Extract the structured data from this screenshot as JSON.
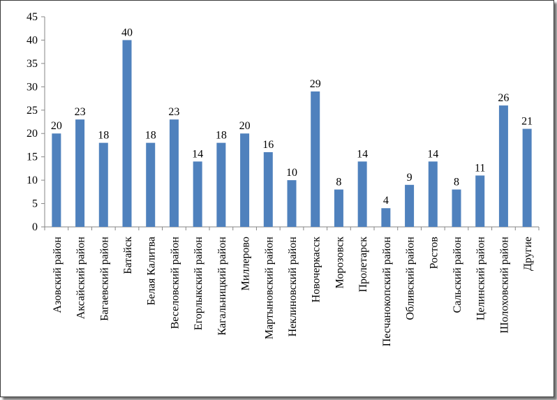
{
  "chart_data": {
    "type": "bar",
    "title": "",
    "xlabel": "",
    "ylabel": "",
    "ylim": [
      0,
      45
    ],
    "yticks": [
      0,
      5,
      10,
      15,
      20,
      25,
      30,
      35,
      40,
      45
    ],
    "grid": false,
    "legend": "none",
    "bar_color": "#4F81BD",
    "categories": [
      "Азовский район",
      "Аксайский район",
      "Багаевский район",
      "Батайск",
      "Белая Калитва",
      "Веселовский район",
      "Егорлыкский район",
      "Кагальницкий район",
      "Миллерово",
      "Мартыновский район",
      "Неклиновский район",
      "Новочеркасск",
      "Морозовск",
      "Пролетарск",
      "Песчанокопский район",
      "Обливский район",
      "Ростов",
      "Сальский район",
      "Целинский район",
      "Шолоховский район",
      "Другие"
    ],
    "values": [
      20,
      23,
      18,
      40,
      18,
      23,
      14,
      18,
      20,
      16,
      10,
      29,
      8,
      14,
      4,
      9,
      14,
      8,
      11,
      26,
      21
    ]
  }
}
